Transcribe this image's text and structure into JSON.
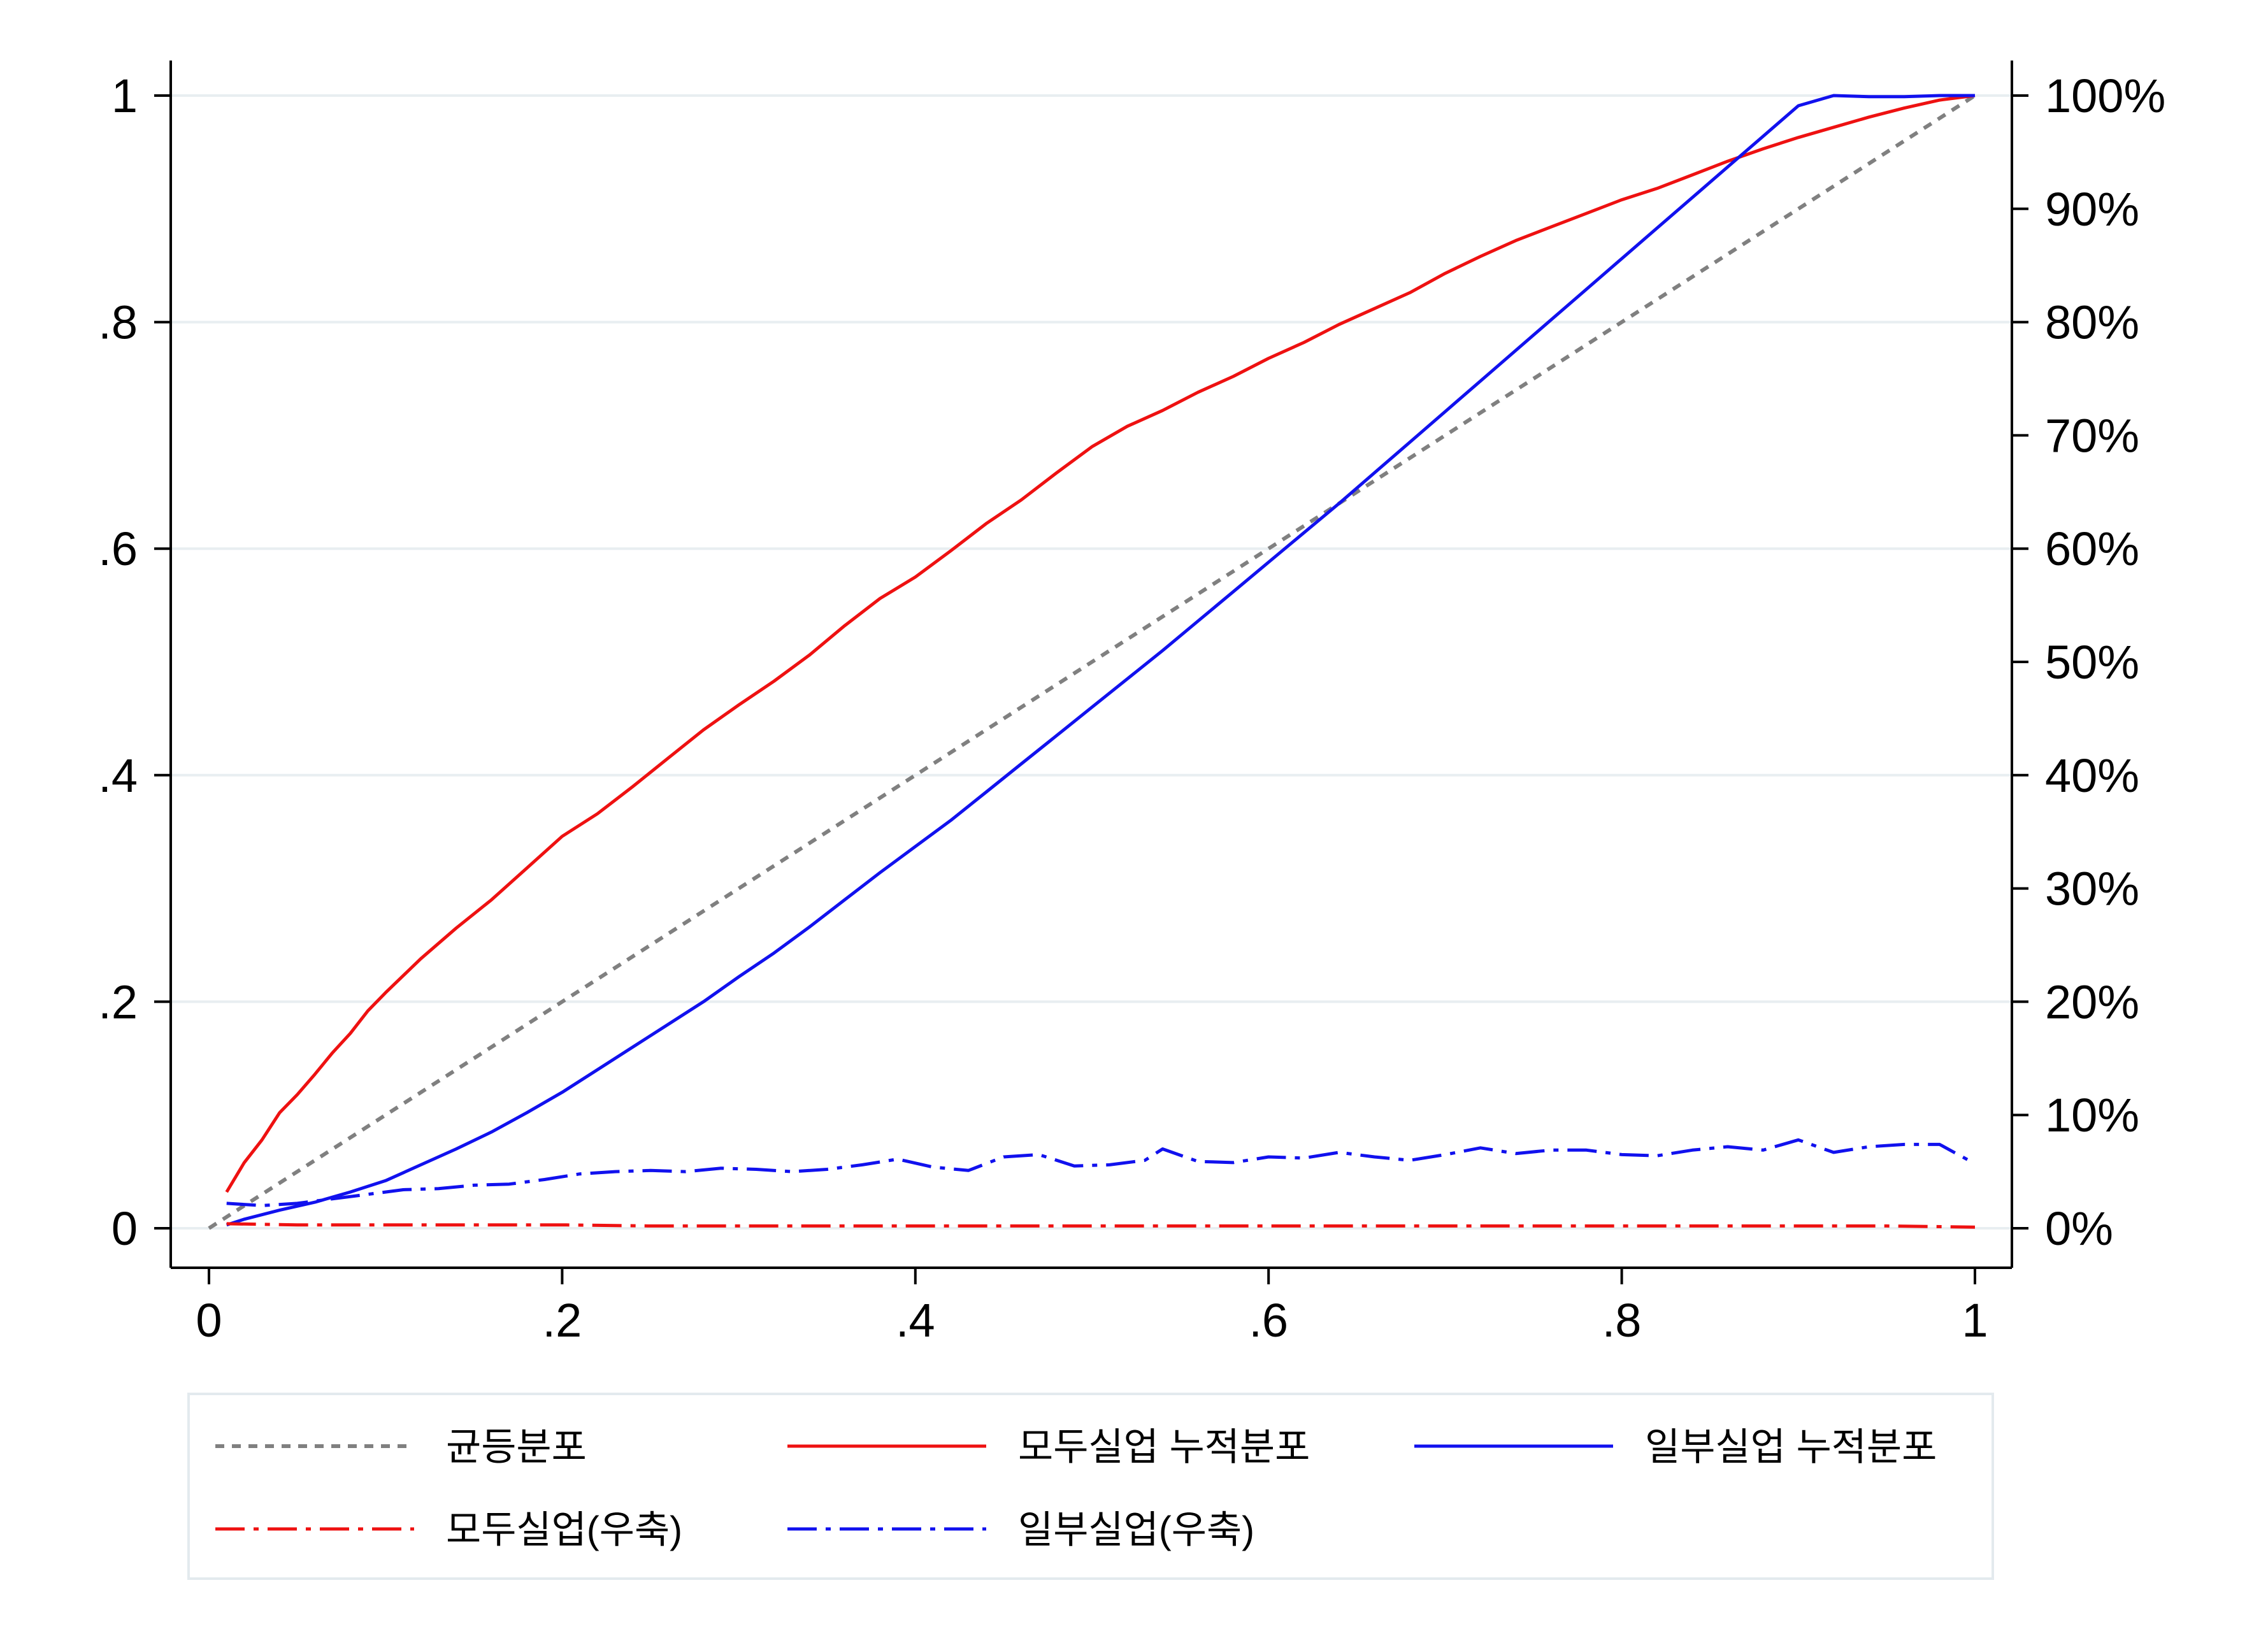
{
  "chart_data": {
    "type": "line",
    "title": "",
    "xlabel": "",
    "ylabel": "",
    "xlim": [
      0,
      1
    ],
    "ylim": [
      0,
      1
    ],
    "y2lim": [
      0,
      1
    ],
    "x_ticks": [
      0,
      0.2,
      0.4,
      0.6,
      0.8,
      1
    ],
    "x_tick_labels": [
      "0",
      ".2",
      ".4",
      ".6",
      ".8",
      "1"
    ],
    "y_ticks": [
      0,
      0.2,
      0.4,
      0.6,
      0.8,
      1
    ],
    "y_tick_labels": [
      "0",
      ".2",
      ".4",
      ".6",
      ".8",
      "1"
    ],
    "y2_ticks": [
      0,
      0.1,
      0.2,
      0.3,
      0.4,
      0.5,
      0.6,
      0.7,
      0.8,
      0.9,
      1
    ],
    "y2_tick_labels": [
      "0%",
      "10%",
      "20%",
      "30%",
      "40%",
      "50%",
      "60%",
      "70%",
      "80%",
      "90%",
      "100%"
    ],
    "grid": "horizontal",
    "legend_position": "bottom",
    "series": [
      {
        "name": "균등분포",
        "color": "#808080",
        "style": "dotted",
        "axis": "left",
        "x": [
          0,
          1
        ],
        "y": [
          0,
          1
        ]
      },
      {
        "name": "모두실업 누적분포",
        "color": "#ee1111",
        "style": "solid",
        "axis": "left",
        "x": [
          0.01,
          0.02,
          0.03,
          0.04,
          0.05,
          0.06,
          0.07,
          0.08,
          0.09,
          0.1,
          0.12,
          0.14,
          0.16,
          0.18,
          0.2,
          0.22,
          0.24,
          0.26,
          0.28,
          0.3,
          0.32,
          0.34,
          0.36,
          0.38,
          0.4,
          0.42,
          0.44,
          0.46,
          0.48,
          0.5,
          0.52,
          0.54,
          0.56,
          0.58,
          0.6,
          0.62,
          0.64,
          0.66,
          0.68,
          0.7,
          0.72,
          0.74,
          0.76,
          0.78,
          0.8,
          0.82,
          0.84,
          0.86,
          0.88,
          0.9,
          0.92,
          0.94,
          0.96,
          0.98,
          1.0
        ],
        "y": [
          0.032,
          0.058,
          0.078,
          0.102,
          0.118,
          0.136,
          0.155,
          0.172,
          0.192,
          0.208,
          0.238,
          0.265,
          0.29,
          0.318,
          0.346,
          0.366,
          0.39,
          0.415,
          0.44,
          0.462,
          0.483,
          0.506,
          0.532,
          0.556,
          0.575,
          0.598,
          0.622,
          0.643,
          0.667,
          0.69,
          0.708,
          0.722,
          0.738,
          0.752,
          0.768,
          0.782,
          0.798,
          0.812,
          0.826,
          0.843,
          0.858,
          0.872,
          0.884,
          0.896,
          0.908,
          0.918,
          0.93,
          0.942,
          0.953,
          0.963,
          0.972,
          0.981,
          0.989,
          0.996,
          1.0
        ]
      },
      {
        "name": "일부실업 누적분포",
        "color": "#1111ee",
        "style": "solid",
        "axis": "left",
        "x": [
          0.01,
          0.02,
          0.04,
          0.06,
          0.08,
          0.1,
          0.12,
          0.14,
          0.16,
          0.18,
          0.2,
          0.22,
          0.24,
          0.26,
          0.28,
          0.3,
          0.32,
          0.34,
          0.36,
          0.38,
          0.4,
          0.42,
          0.44,
          0.46,
          0.48,
          0.5,
          0.52,
          0.54,
          0.56,
          0.58,
          0.6,
          0.62,
          0.64,
          0.66,
          0.68,
          0.7,
          0.72,
          0.74,
          0.76,
          0.78,
          0.8,
          0.82,
          0.84,
          0.86,
          0.88,
          0.9,
          0.92,
          0.94,
          0.96,
          0.98,
          1.0
        ],
        "y": [
          0.003,
          0.008,
          0.016,
          0.023,
          0.032,
          0.042,
          0.056,
          0.07,
          0.085,
          0.102,
          0.12,
          0.14,
          0.16,
          0.18,
          0.2,
          0.222,
          0.243,
          0.266,
          0.29,
          0.314,
          0.337,
          0.36,
          0.385,
          0.41,
          0.435,
          0.46,
          0.485,
          0.51,
          0.536,
          0.562,
          0.588,
          0.614,
          0.64,
          0.667,
          0.694,
          0.721,
          0.748,
          0.775,
          0.802,
          0.829,
          0.856,
          0.883,
          0.91,
          0.937,
          0.964,
          0.991,
          1.0,
          0.999,
          0.999,
          1.0,
          1.0
        ]
      },
      {
        "name": "모두실업(우축)",
        "color": "#ee1111",
        "style": "dashdot",
        "axis": "right",
        "x": [
          0.01,
          0.05,
          0.1,
          0.15,
          0.2,
          0.25,
          0.3,
          0.35,
          0.4,
          0.45,
          0.5,
          0.55,
          0.6,
          0.65,
          0.7,
          0.75,
          0.8,
          0.85,
          0.9,
          0.95,
          1.0
        ],
        "y": [
          0.004,
          0.003,
          0.003,
          0.003,
          0.003,
          0.002,
          0.002,
          0.002,
          0.002,
          0.002,
          0.002,
          0.002,
          0.002,
          0.002,
          0.002,
          0.002,
          0.002,
          0.002,
          0.002,
          0.002,
          0.001
        ]
      },
      {
        "name": "일부실업(우축)",
        "color": "#1111ee",
        "style": "dashdot",
        "axis": "right",
        "x": [
          0.01,
          0.03,
          0.05,
          0.07,
          0.09,
          0.11,
          0.13,
          0.15,
          0.17,
          0.19,
          0.21,
          0.23,
          0.25,
          0.27,
          0.29,
          0.31,
          0.33,
          0.35,
          0.37,
          0.39,
          0.41,
          0.43,
          0.45,
          0.47,
          0.49,
          0.51,
          0.53,
          0.54,
          0.56,
          0.58,
          0.6,
          0.62,
          0.64,
          0.66,
          0.68,
          0.7,
          0.72,
          0.74,
          0.76,
          0.78,
          0.8,
          0.82,
          0.84,
          0.86,
          0.88,
          0.9,
          0.92,
          0.94,
          0.96,
          0.98,
          1.0
        ],
        "y": [
          0.022,
          0.02,
          0.022,
          0.026,
          0.03,
          0.034,
          0.035,
          0.038,
          0.039,
          0.043,
          0.048,
          0.05,
          0.051,
          0.05,
          0.053,
          0.052,
          0.05,
          0.052,
          0.056,
          0.061,
          0.054,
          0.051,
          0.063,
          0.065,
          0.055,
          0.056,
          0.06,
          0.07,
          0.059,
          0.058,
          0.063,
          0.062,
          0.067,
          0.063,
          0.06,
          0.065,
          0.071,
          0.066,
          0.069,
          0.069,
          0.065,
          0.064,
          0.069,
          0.072,
          0.069,
          0.078,
          0.067,
          0.072,
          0.074,
          0.074,
          0.057
        ]
      }
    ]
  },
  "legend": {
    "items": [
      {
        "label": "균등분포",
        "color": "#808080",
        "style": "dotted"
      },
      {
        "label": "모두실업 누적분포",
        "color": "#ee1111",
        "style": "solid"
      },
      {
        "label": "일부실업 누적분포",
        "color": "#1111ee",
        "style": "solid"
      },
      {
        "label": "모두실업(우축)",
        "color": "#ee1111",
        "style": "dashdot"
      },
      {
        "label": "일부실업(우축)",
        "color": "#1111ee",
        "style": "dashdot"
      }
    ]
  }
}
